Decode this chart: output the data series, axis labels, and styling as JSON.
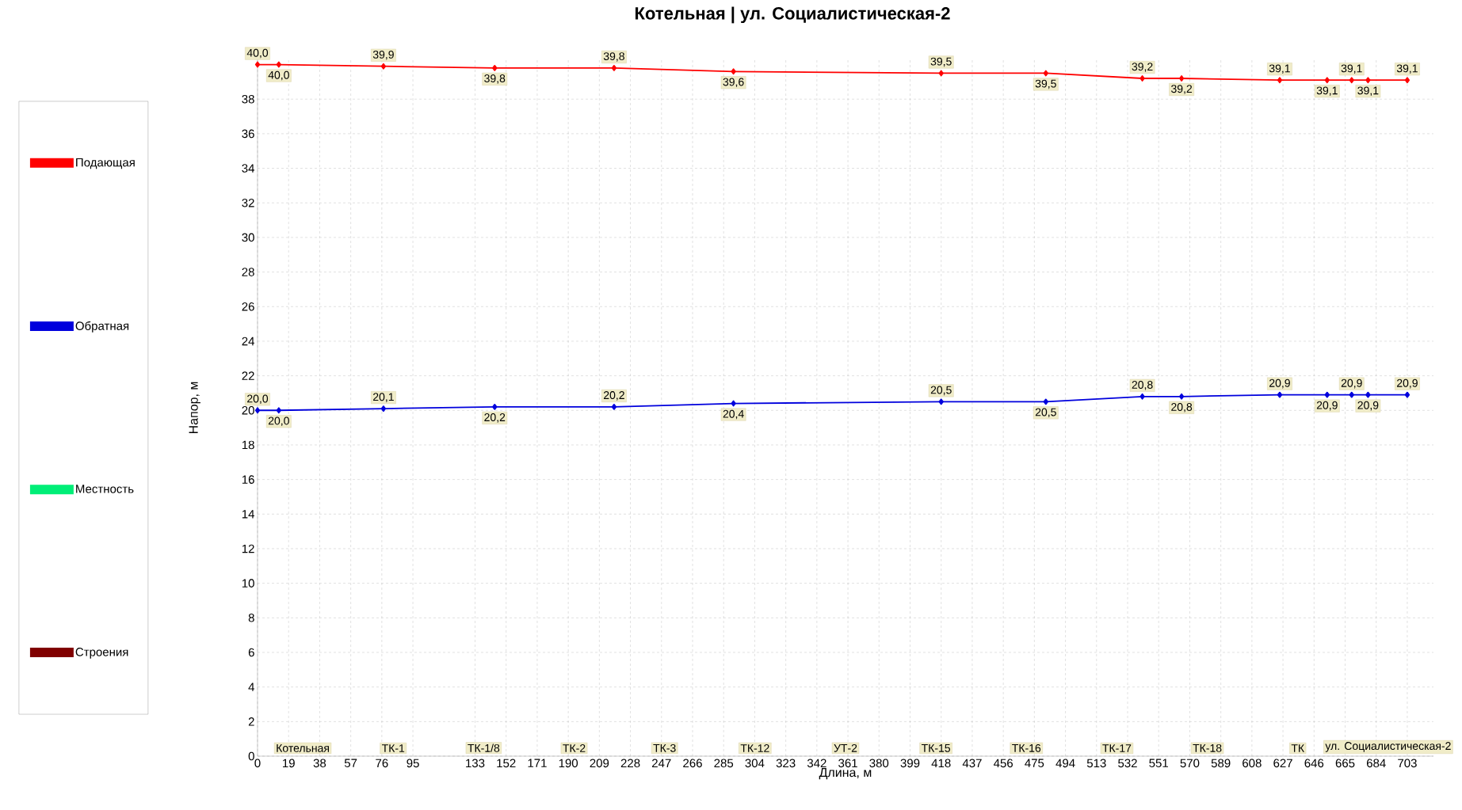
{
  "chart_data": {
    "type": "line",
    "title": "Котельная | ул. Социалистическая-2",
    "xlabel": "Длина, м",
    "ylabel": "Напор, м",
    "x": [
      0,
      13,
      77,
      145,
      218,
      291,
      418,
      482,
      541,
      565,
      625,
      654,
      669,
      679,
      703
    ],
    "series": [
      {
        "name": "Подающая",
        "color": "#ff0000",
        "values": [
          40.0,
          40.0,
          39.9,
          39.8,
          39.8,
          39.6,
          39.5,
          39.5,
          39.2,
          39.2,
          39.1,
          39.1,
          39.1,
          39.1,
          39.1
        ],
        "value_labels": [
          "40,0",
          "40,0",
          "39,9",
          "39,8",
          "39,8",
          "39,6",
          "39,5",
          "39,5",
          "39,2",
          "39,2",
          "39,1",
          "39,1",
          "39,1",
          "39,1",
          "39,1"
        ]
      },
      {
        "name": "Обратная",
        "color": "#0000dd",
        "values": [
          20.0,
          20.0,
          20.1,
          20.2,
          20.2,
          20.4,
          20.5,
          20.5,
          20.8,
          20.8,
          20.9,
          20.9,
          20.9,
          20.9,
          20.9
        ],
        "value_labels": [
          "20,0",
          "20,0",
          "20,1",
          "20,2",
          "20,2",
          "20,4",
          "20,5",
          "20,5",
          "20,8",
          "20,8",
          "20,9",
          "20,9",
          "20,9",
          "20,9",
          "20,9"
        ]
      },
      {
        "name": "Местность",
        "color": "#00ee77",
        "values": [
          null,
          null,
          null,
          null,
          null,
          null,
          null,
          null,
          null,
          null,
          null,
          null,
          null,
          null,
          null
        ]
      },
      {
        "name": "Строения",
        "color": "#800000",
        "values": [
          null,
          null,
          null,
          null,
          null,
          null,
          null,
          null,
          null,
          null,
          null,
          null,
          null,
          null,
          null
        ]
      }
    ],
    "annotations": [
      "Котельная",
      "ТК-1",
      "ТК-1/8",
      "ТК-2",
      "ТК-3",
      "ТК-12",
      "УТ-2",
      "ТК-15",
      "ТК-16",
      "ТК-17",
      "ТК-18",
      "ТК",
      "ул. Социалистическая-2"
    ],
    "xlim": [
      0,
      719
    ],
    "ylim": [
      0,
      40.3
    ],
    "xticks": [
      0,
      19,
      38,
      57,
      76,
      95,
      133,
      152,
      171,
      190,
      209,
      228,
      247,
      266,
      285,
      304,
      323,
      342,
      361,
      380,
      399,
      418,
      437,
      456,
      475,
      494,
      513,
      532,
      551,
      570,
      589,
      608,
      627,
      646,
      665,
      684,
      703
    ],
    "yticks": [
      0,
      2,
      4,
      6,
      8,
      10,
      12,
      14,
      16,
      18,
      20,
      22,
      24,
      26,
      28,
      30,
      32,
      34,
      36,
      38
    ],
    "grid": true,
    "legend": "left",
    "marker": "diamond",
    "line_style": "solid"
  }
}
